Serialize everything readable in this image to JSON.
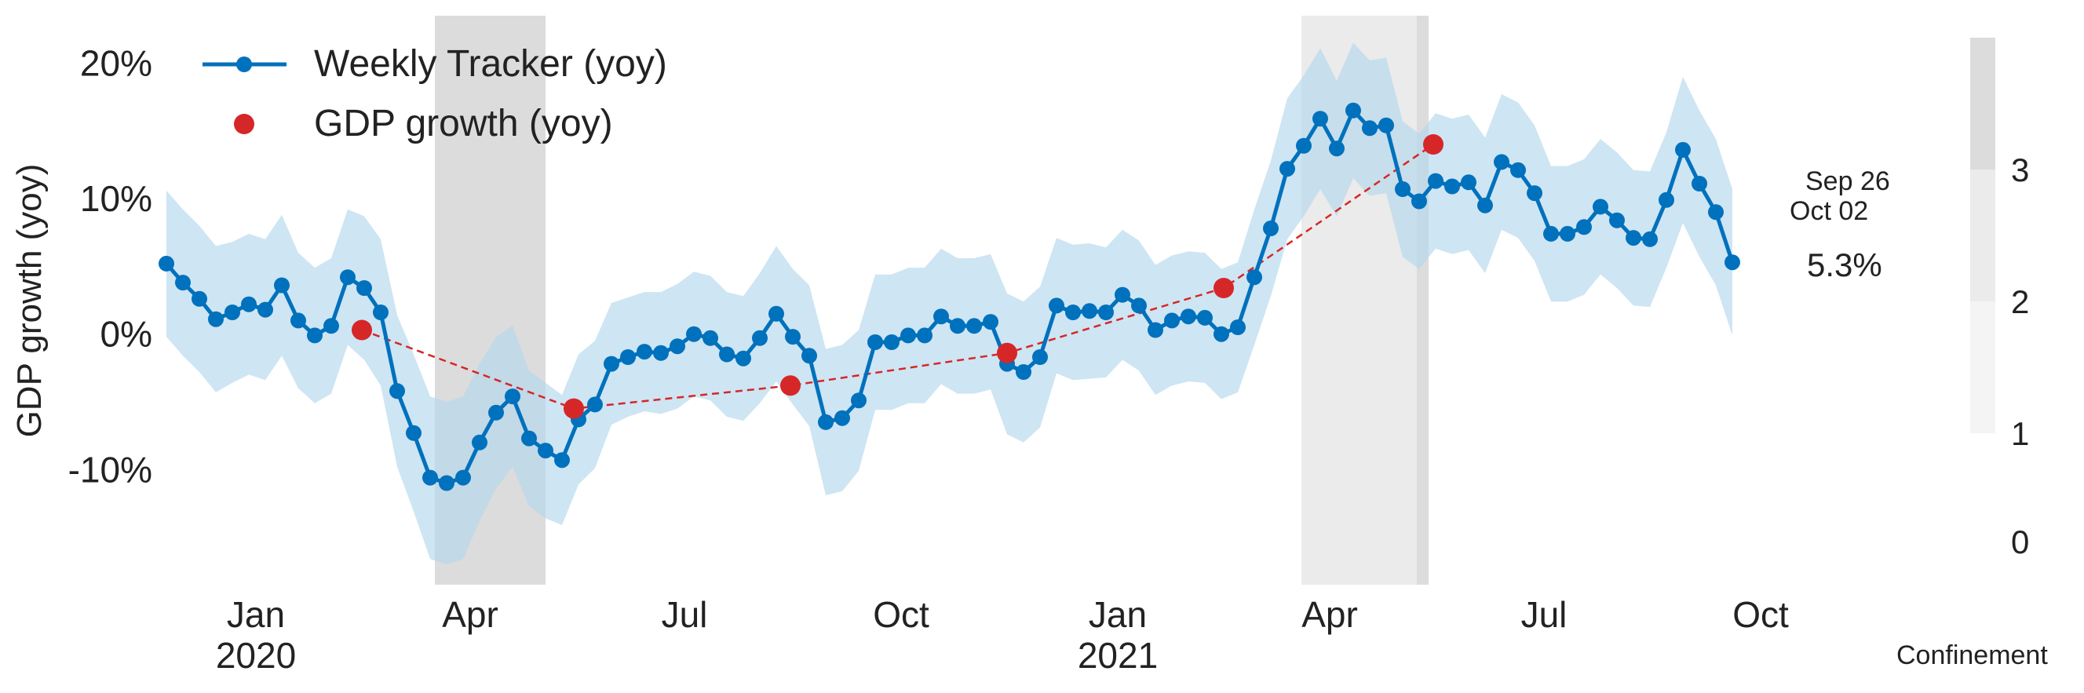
{
  "chart_data": {
    "type": "line",
    "ylabel": "GDP growth (yoy)",
    "xlabel": "",
    "title": "",
    "ylim": [
      -18.5,
      23.5
    ],
    "xlim": [
      "2019-11-24",
      "2021-10-20"
    ],
    "y_ticks": [
      {
        "value": 20,
        "label": "20%"
      },
      {
        "value": 10,
        "label": "10%"
      },
      {
        "value": 0,
        "label": "0%"
      },
      {
        "value": -10,
        "label": "-10%"
      }
    ],
    "x_ticks": [
      {
        "date": "2020-01-01",
        "month": "Jan",
        "year": "2020"
      },
      {
        "date": "2020-04-01",
        "month": "Apr",
        "year": ""
      },
      {
        "date": "2020-07-01",
        "month": "Jul",
        "year": ""
      },
      {
        "date": "2020-10-01",
        "month": "Oct",
        "year": ""
      },
      {
        "date": "2021-01-01",
        "month": "Jan",
        "year": "2021"
      },
      {
        "date": "2021-04-01",
        "month": "Apr",
        "year": ""
      },
      {
        "date": "2021-07-01",
        "month": "Jul",
        "year": ""
      },
      {
        "date": "2021-10-01",
        "month": "Oct",
        "year": ""
      }
    ],
    "legend": {
      "placement": "top-left",
      "entries": [
        "Weekly Tracker (yoy)",
        "GDP growth (yoy)"
      ]
    },
    "series": [
      {
        "name": "Weekly Tracker (yoy)",
        "color": "#0071bc",
        "band_color": "#b3d7ec",
        "x_start": "2019-11-24",
        "step_days": 7,
        "values": [
          5.2,
          3.8,
          2.6,
          1.1,
          1.6,
          2.2,
          1.8,
          3.6,
          1.0,
          -0.1,
          0.6,
          4.2,
          3.4,
          1.6,
          -4.2,
          -7.3,
          -10.6,
          -11.0,
          -10.6,
          -8.0,
          -5.8,
          -4.6,
          -7.7,
          -8.6,
          -9.3,
          -6.3,
          -5.2,
          -2.2,
          -1.7,
          -1.3,
          -1.4,
          -0.9,
          0.0,
          -0.3,
          -1.5,
          -1.8,
          -0.3,
          1.5,
          -0.2,
          -1.6,
          -6.5,
          -6.2,
          -4.9,
          -0.6,
          -0.6,
          -0.1,
          -0.1,
          1.3,
          0.6,
          0.6,
          0.9,
          -2.2,
          -2.8,
          -1.7,
          2.1,
          1.6,
          1.7,
          1.6,
          2.9,
          2.1,
          0.3,
          1.0,
          1.3,
          1.2,
          0.0,
          0.5,
          4.2,
          7.8,
          12.2,
          13.9,
          15.9,
          13.7,
          16.5,
          15.2,
          15.4,
          10.7,
          9.8,
          11.3,
          10.9,
          11.2,
          9.5,
          12.7,
          12.1,
          10.4,
          7.4,
          7.4,
          7.9,
          9.4,
          8.4,
          7.1,
          7.0,
          9.9,
          13.6,
          11.1,
          9.0,
          5.3
        ],
        "band_halfwidth": [
          5.4,
          5.4,
          5.4,
          5.4,
          5.2,
          5.2,
          5.2,
          5.2,
          5.0,
          5.0,
          5.0,
          5.0,
          5.3,
          5.4,
          5.6,
          5.8,
          6.0,
          6.0,
          6.0,
          5.8,
          5.6,
          5.2,
          5.0,
          5.0,
          4.8,
          4.8,
          4.7,
          4.5,
          4.4,
          4.4,
          4.5,
          4.6,
          4.6,
          4.6,
          4.6,
          4.6,
          4.8,
          5.0,
          5.0,
          5.2,
          5.4,
          5.4,
          5.2,
          5.0,
          5.0,
          5.0,
          5.0,
          5.0,
          5.0,
          5.0,
          5.0,
          5.2,
          5.2,
          5.2,
          5.0,
          5.0,
          5.0,
          4.8,
          4.8,
          4.8,
          4.8,
          4.8,
          4.8,
          4.8,
          4.8,
          4.8,
          5.0,
          5.0,
          5.2,
          5.2,
          5.2,
          5.0,
          5.0,
          5.0,
          5.0,
          5.0,
          5.0,
          5.0,
          5.0,
          5.0,
          5.0,
          5.0,
          5.0,
          5.0,
          5.0,
          5.0,
          5.0,
          5.0,
          5.0,
          5.0,
          5.0,
          5.0,
          5.4,
          5.4,
          5.4,
          5.4
        ]
      },
      {
        "name": "GDP growth (yoy)",
        "color": "#d62728",
        "line_style": "dashed",
        "points": [
          {
            "date": "2020-02-15",
            "value": 0.3
          },
          {
            "date": "2020-05-15",
            "value": -5.5
          },
          {
            "date": "2020-08-15",
            "value": -3.8
          },
          {
            "date": "2020-11-15",
            "value": -1.4
          },
          {
            "date": "2021-02-15",
            "value": 3.4
          },
          {
            "date": "2021-05-15",
            "value": 14.0
          }
        ]
      }
    ],
    "confinement_shading": [
      {
        "start": "2020-03-17",
        "end": "2020-05-03",
        "level": 3
      },
      {
        "start": "2021-03-20",
        "end": "2021-05-08",
        "level": 2
      },
      {
        "start": "2021-05-08",
        "end": "2021-05-13",
        "level": 3
      }
    ],
    "confinement_legend": {
      "label": "Confinement",
      "ticks": [
        {
          "value": 3,
          "label": "3"
        },
        {
          "value": 2,
          "label": "2"
        },
        {
          "value": 1,
          "label": "1"
        },
        {
          "value": 0,
          "label": "0"
        }
      ],
      "level_colors": {
        "1": "#f4f4f4",
        "2": "#ebebeb",
        "3": "#dcdcdc"
      }
    },
    "annotations": [
      {
        "text": "Sep 26",
        "anchor": "2021-09-26"
      },
      {
        "text": "Oct 02",
        "anchor": "2021-10-02"
      },
      {
        "text": "5.3%",
        "anchor": "latest-value",
        "value": 5.3
      }
    ]
  }
}
